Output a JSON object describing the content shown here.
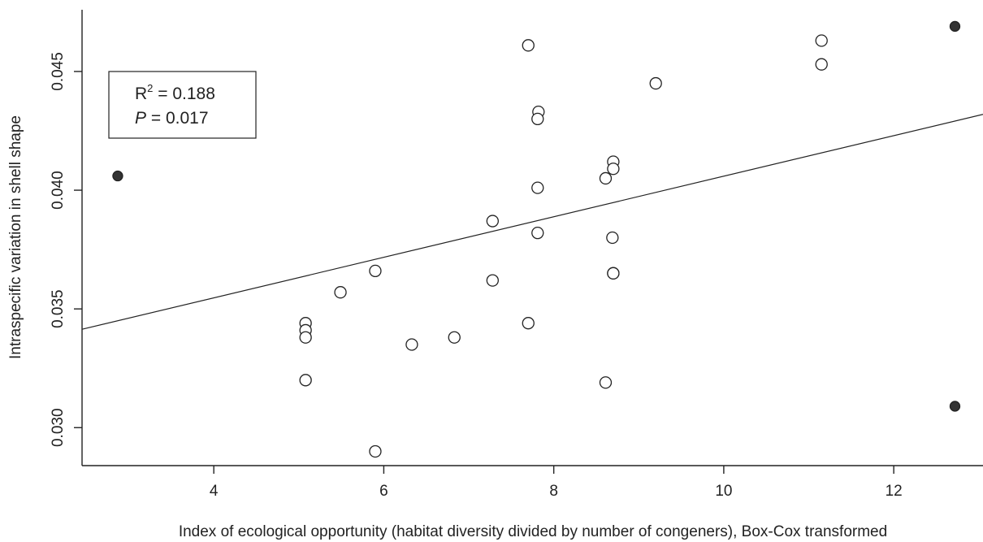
{
  "chart_data": {
    "type": "scatter",
    "xlabel": "Index of ecological opportunity (habitat diversity divided by number of congeners), Box-Cox transformed",
    "ylabel": "Intraspecific variation in shell shape",
    "xlim": [
      2.45,
      13.05
    ],
    "ylim": [
      0.0284,
      0.0476
    ],
    "x_ticks": [
      4,
      6,
      8,
      10,
      12
    ],
    "x_tick_labels": [
      "4",
      "6",
      "8",
      "10",
      "12"
    ],
    "y_ticks": [
      0.03,
      0.035,
      0.04,
      0.045
    ],
    "y_tick_labels": [
      "0.030",
      "0.035",
      "0.040",
      "0.045"
    ],
    "grid": false,
    "annotation": {
      "r2_label": "R",
      "r2_superscript": "2",
      "r2_value": " = 0.188",
      "p_label": "P",
      "p_value": " = 0.017"
    },
    "fit_line": {
      "intercept": 0.03205,
      "slope": 0.000854
    },
    "series": [
      {
        "marker": "open-circle",
        "points": [
          [
            7.7,
            0.0461
          ],
          [
            11.15,
            0.0463
          ],
          [
            11.15,
            0.0453
          ],
          [
            9.2,
            0.0445
          ],
          [
            7.82,
            0.0433
          ],
          [
            7.81,
            0.043
          ],
          [
            8.7,
            0.0412
          ],
          [
            8.7,
            0.0409
          ],
          [
            8.61,
            0.0405
          ],
          [
            7.81,
            0.0401
          ],
          [
            7.28,
            0.0387
          ],
          [
            7.81,
            0.0382
          ],
          [
            8.69,
            0.038
          ],
          [
            5.9,
            0.0366
          ],
          [
            8.7,
            0.0365
          ],
          [
            8.7,
            0.0365
          ],
          [
            5.49,
            0.0357
          ],
          [
            7.28,
            0.0362
          ],
          [
            5.08,
            0.0344
          ],
          [
            5.08,
            0.0341
          ],
          [
            5.08,
            0.0338
          ],
          [
            6.83,
            0.0338
          ],
          [
            6.33,
            0.0335
          ],
          [
            7.7,
            0.0344
          ],
          [
            5.08,
            0.032
          ],
          [
            8.61,
            0.0319
          ],
          [
            5.9,
            0.029
          ]
        ]
      },
      {
        "marker": "filled-circle",
        "points": [
          [
            2.87,
            0.0406
          ],
          [
            12.72,
            0.0469
          ],
          [
            12.72,
            0.0309
          ]
        ]
      }
    ]
  },
  "colors": {
    "axis": "#222222",
    "marker_fill": "#333333",
    "background": "#ffffff"
  }
}
